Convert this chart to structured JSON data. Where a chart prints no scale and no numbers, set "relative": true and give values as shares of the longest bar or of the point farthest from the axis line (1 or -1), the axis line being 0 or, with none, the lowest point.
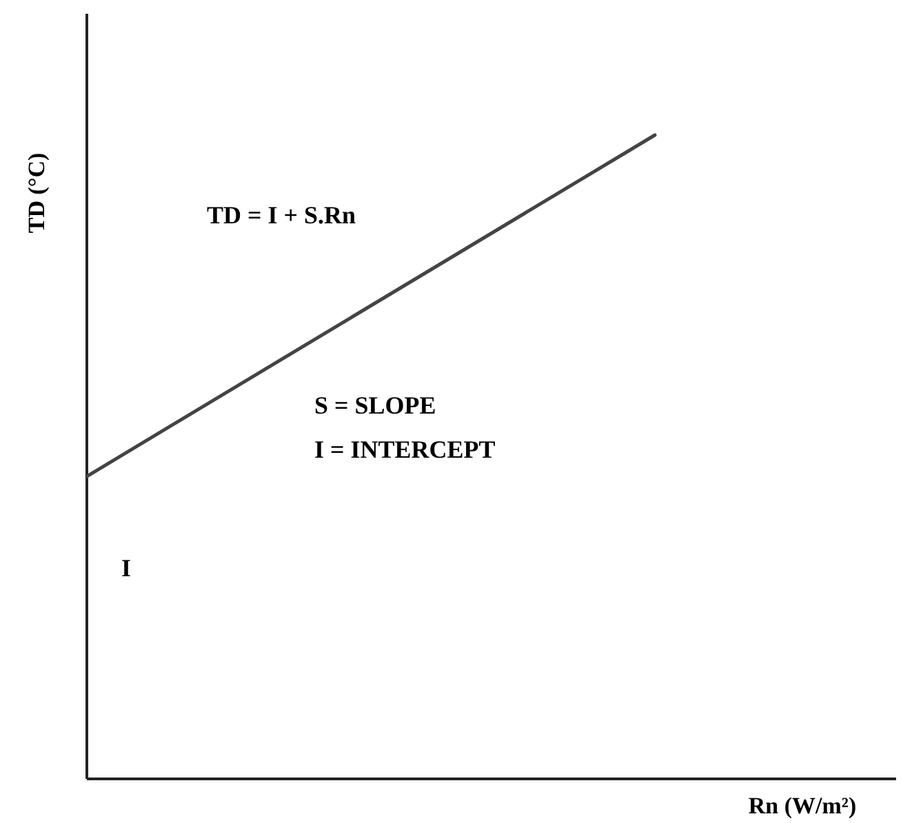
{
  "chart_data": {
    "type": "line",
    "relative": true,
    "xlabel": "Rn (W/m²)",
    "ylabel": "TD (°C)",
    "categories": [
      null,
      null
    ],
    "series": [
      {
        "color": "#444444",
        "values": [
          0.47,
          1
        ]
      }
    ],
    "line_style": "solid",
    "marker": "none",
    "annotations": [
      "TD = I + S.Rn",
      "S = SLOPE",
      "I = INTERCEPT",
      "I"
    ]
  }
}
